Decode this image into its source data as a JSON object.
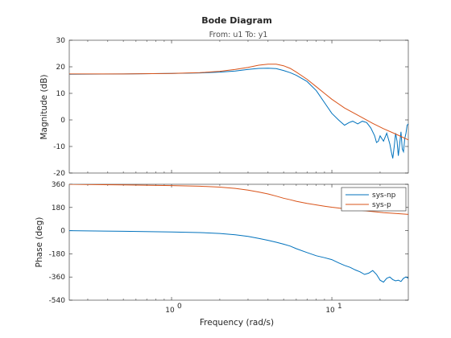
{
  "chart_data": {
    "type": "line",
    "title": "Bode Diagram",
    "subtitle": "From: u1  To: y1",
    "xlabel": "Frequency  (rad/s)",
    "xscale": "log",
    "xlim": [
      0.23,
      30
    ],
    "xticks": [
      {
        "value": 1,
        "label": "10",
        "exp": "0"
      },
      {
        "value": 10,
        "label": "10",
        "exp": "1"
      }
    ],
    "legend": {
      "placement": "top-right",
      "entries": [
        "sys-np",
        "sys-p"
      ]
    },
    "colors": {
      "sys-np": "#0072BD",
      "sys-p": "#D95319"
    },
    "panels": [
      {
        "name": "magnitude",
        "ylabel": "Magnitude (dB)",
        "ylim": [
          -20,
          30
        ],
        "yticks": [
          -20,
          -10,
          0,
          10,
          20,
          30
        ],
        "ytick_labels": [
          "-20",
          "-10",
          "0",
          "10",
          "20",
          "30"
        ],
        "series": [
          {
            "name": "sys-np",
            "x": [
              0.23,
              0.5,
              1.0,
              1.5,
              2.0,
              2.5,
              3.0,
              3.5,
              4.0,
              4.5,
              5.0,
              5.5,
              6.0,
              7.0,
              8.0,
              9.0,
              10.0,
              11.0,
              12.0,
              12.8,
              13.5,
              14.5,
              15.5,
              16.5,
              17.5,
              18.5,
              19.0,
              19.5,
              20.0,
              20.5,
              21.0,
              21.5,
              22.0,
              22.5,
              23.0,
              23.5,
              24.0,
              24.5,
              25.0,
              25.5,
              26.0,
              26.5,
              27.0,
              27.5,
              28.0,
              28.5,
              29.0,
              29.5,
              30.0
            ],
            "y": [
              17.2,
              17.3,
              17.5,
              17.7,
              18.0,
              18.4,
              19.0,
              19.4,
              19.5,
              19.3,
              18.6,
              17.8,
              16.8,
              14.5,
              11.0,
              6.5,
              2.5,
              0.0,
              -2.0,
              -1.0,
              -0.5,
              -1.5,
              -0.5,
              -1.0,
              -3.0,
              -6.0,
              -8.5,
              -8.0,
              -6.0,
              -7.0,
              -8.0,
              -6.5,
              -5.0,
              -7.0,
              -9.0,
              -12.0,
              -14.5,
              -10.0,
              -5.0,
              -8.0,
              -13.5,
              -9.0,
              -4.5,
              -11.0,
              -12.0,
              -7.0,
              -5.0,
              -2.0,
              -1.5
            ]
          },
          {
            "name": "sys-p",
            "x": [
              0.23,
              0.5,
              1.0,
              1.5,
              2.0,
              2.5,
              3.0,
              3.5,
              4.0,
              4.5,
              5.0,
              5.5,
              6.0,
              7.0,
              8.0,
              9.0,
              10.0,
              12.0,
              15.0,
              18.0,
              21.0,
              25.0,
              30.0
            ],
            "y": [
              17.3,
              17.3,
              17.5,
              17.8,
              18.3,
              19.0,
              19.8,
              20.6,
              21.0,
              21.0,
              20.4,
              19.4,
              18.0,
              15.3,
              12.5,
              10.0,
              7.8,
              4.5,
              1.3,
              -1.3,
              -3.3,
              -5.3,
              -7.5
            ]
          }
        ]
      },
      {
        "name": "phase",
        "ylabel": "Phase (deg)",
        "ylim": [
          -540,
          360
        ],
        "yticks": [
          -540,
          -360,
          -180,
          0,
          180,
          360
        ],
        "ytick_labels": [
          "-540",
          "-360",
          "-180",
          "0",
          "180",
          "360"
        ],
        "series": [
          {
            "name": "sys-np",
            "x": [
              0.23,
              0.5,
              1.0,
              1.5,
              2.0,
              2.5,
              3.0,
              3.5,
              4.0,
              4.5,
              5.0,
              5.5,
              6.0,
              7.0,
              8.0,
              9.0,
              10.0,
              11.0,
              12.0,
              13.0,
              14.0,
              15.0,
              16.0,
              17.0,
              18.0,
              19.0,
              20.0,
              21.0,
              22.0,
              23.0,
              24.0,
              25.0,
              26.0,
              27.0,
              28.0,
              29.0,
              30.0
            ],
            "y": [
              0,
              -5,
              -10,
              -15,
              -22,
              -32,
              -45,
              -60,
              -75,
              -90,
              -105,
              -120,
              -140,
              -170,
              -195,
              -210,
              -225,
              -250,
              -270,
              -285,
              -305,
              -320,
              -340,
              -330,
              -310,
              -340,
              -385,
              -400,
              -370,
              -360,
              -380,
              -390,
              -385,
              -395,
              -370,
              -360,
              -370
            ]
          },
          {
            "name": "sys-p",
            "x": [
              0.23,
              0.5,
              1.0,
              1.5,
              2.0,
              2.5,
              3.0,
              3.5,
              4.0,
              4.5,
              5.0,
              5.5,
              6.0,
              7.0,
              8.0,
              9.0,
              10.0,
              12.0,
              15.0,
              18.0,
              21.0,
              25.0,
              30.0
            ],
            "y": [
              360,
              355,
              350,
              345,
              338,
              328,
              315,
              300,
              285,
              268,
              252,
              240,
              228,
              212,
              200,
              190,
              182,
              170,
              158,
              148,
              140,
              133,
              126
            ]
          }
        ]
      }
    ]
  }
}
